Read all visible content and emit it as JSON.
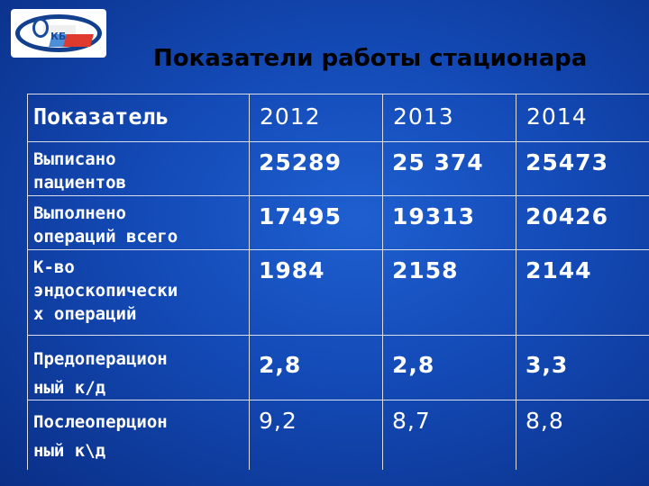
{
  "title": "Показатели работы стационара",
  "logo": {
    "text": "КБ"
  },
  "table": {
    "headers": [
      "Показатель",
      "2012",
      "2013",
      "2014"
    ],
    "rows": [
      {
        "label": [
          "Выписано",
          "пациентов"
        ],
        "values": [
          "25289",
          "25 374",
          "25473"
        ]
      },
      {
        "label": [
          "Выполнено",
          "операций всего"
        ],
        "values": [
          "17495",
          "19313",
          "20426"
        ]
      },
      {
        "label": [
          "К-во",
          "эндоскопически",
          "х операций"
        ],
        "values": [
          "1984",
          "2158",
          "2144"
        ]
      },
      {
        "label": [
          "Предоперацион",
          "ный к/д"
        ],
        "values": [
          "2,8",
          "2,8",
          "3,3"
        ]
      },
      {
        "label": [
          "Послеоперцион",
          "ный к\\д"
        ],
        "values": [
          "9,2",
          "8,7",
          "8,8"
        ]
      }
    ]
  }
}
